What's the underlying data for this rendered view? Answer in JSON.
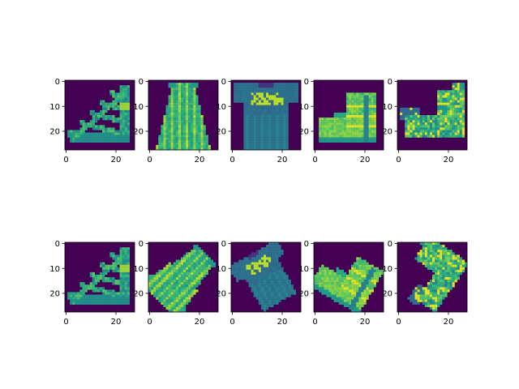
{
  "figure": {
    "background": "#ffffff"
  },
  "chart_data": {
    "type": "heatmap",
    "layout": {
      "rows": 2,
      "cols": 5
    },
    "colormap": "viridis",
    "image_shape": [
      28,
      28
    ],
    "xlim": [
      -0.5,
      27.5
    ],
    "ylim": [
      27.5,
      -0.5
    ],
    "xticks": [
      0,
      20
    ],
    "yticks": [
      0,
      10,
      20
    ],
    "grid": false,
    "panels": [
      {
        "row": 0,
        "col": 0,
        "content": "sandal"
      },
      {
        "row": 0,
        "col": 1,
        "content": "dress"
      },
      {
        "row": 0,
        "col": 2,
        "content": "tshirt"
      },
      {
        "row": 0,
        "col": 3,
        "content": "ankle-boot"
      },
      {
        "row": 0,
        "col": 4,
        "content": "sandal-wedge"
      },
      {
        "row": 1,
        "col": 0,
        "content": "sandal"
      },
      {
        "row": 1,
        "col": 1,
        "content": "dress-rotated"
      },
      {
        "row": 1,
        "col": 2,
        "content": "tshirt-rotated"
      },
      {
        "row": 1,
        "col": 3,
        "content": "ankle-boot-rotated"
      },
      {
        "row": 1,
        "col": 4,
        "content": "sandal-wedge-rotated"
      }
    ]
  }
}
